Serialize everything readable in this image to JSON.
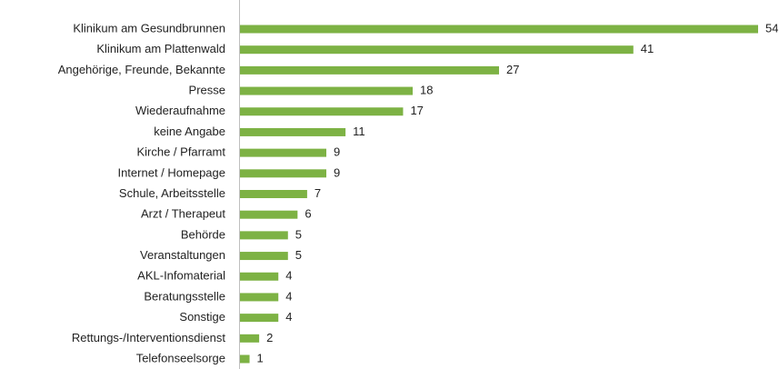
{
  "chart_data": {
    "type": "barh",
    "categories": [
      "Klinikum am Gesundbrunnen",
      "Klinikum am Plattenwald",
      "Angehörige, Freunde, Bekannte",
      "Presse",
      "Wiederaufnahme",
      "keine Angabe",
      "Kirche / Pfarramt",
      "Internet / Homepage",
      "Schule, Arbeitsstelle",
      "Arzt / Therapeut",
      "Behörde",
      "Veranstaltungen",
      "AKL-Infomaterial",
      "Beratungsstelle",
      "Sonstige",
      "Rettungs-/Interventionsdienst",
      "Telefonseelsorge"
    ],
    "values": [
      54,
      41,
      27,
      18,
      17,
      11,
      9,
      9,
      7,
      6,
      5,
      5,
      4,
      4,
      4,
      2,
      1
    ],
    "color": "#7db244"
  }
}
